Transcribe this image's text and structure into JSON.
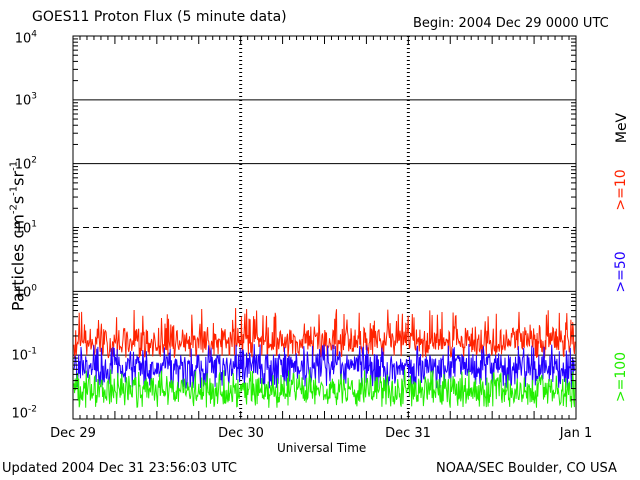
{
  "header": {
    "title": "GOES11 Proton Flux (5 minute data)",
    "begin": "Begin: 2004 Dec 29 0000 UTC"
  },
  "footer": {
    "updated": "Updated 2004 Dec 31 23:56:03 UTC",
    "credit": "NOAA/SEC Boulder, CO USA"
  },
  "axes": {
    "xlabel": "Universal Time",
    "ylabel_base": "Particles cm",
    "ylabel_exp1": "-2",
    "ylabel_s": "s",
    "ylabel_exp2": "-1",
    "ylabel_sr": "sr",
    "ylabel_exp3": "-1",
    "xticks": [
      "Dec 29",
      "Dec 30",
      "Dec 31",
      "Jan 1"
    ],
    "yticks": [
      {
        "base": "10",
        "exp": "4"
      },
      {
        "base": "10",
        "exp": "3"
      },
      {
        "base": "10",
        "exp": "2"
      },
      {
        "base": "10",
        "exp": "1"
      },
      {
        "base": "10",
        "exp": "0"
      },
      {
        "base": "10",
        "exp": "-1"
      },
      {
        "base": "10",
        "exp": "-2"
      }
    ]
  },
  "legend": {
    "unit": "MeV",
    "ge10": ">=10",
    "ge50": ">=50",
    "ge100": ">=100"
  },
  "chart_data": {
    "type": "line",
    "yscale": "log",
    "ylim": [
      0.01,
      10000
    ],
    "xlim": [
      "2004-12-29 00:00",
      "2005-01-01 00:00"
    ],
    "grid": true,
    "threshold_lines": [
      1000,
      100,
      10,
      1,
      0.1
    ],
    "dashed_threshold": 10,
    "series": [
      {
        "name": ">=10",
        "color": "#ff2200",
        "typical": 0.18,
        "min": 0.09,
        "max": 0.55
      },
      {
        "name": ">=50",
        "color": "#2200ff",
        "typical": 0.07,
        "min": 0.03,
        "max": 0.15
      },
      {
        "name": ">=100",
        "color": "#22ee00",
        "typical": 0.03,
        "min": 0.015,
        "max": 0.06
      }
    ]
  }
}
